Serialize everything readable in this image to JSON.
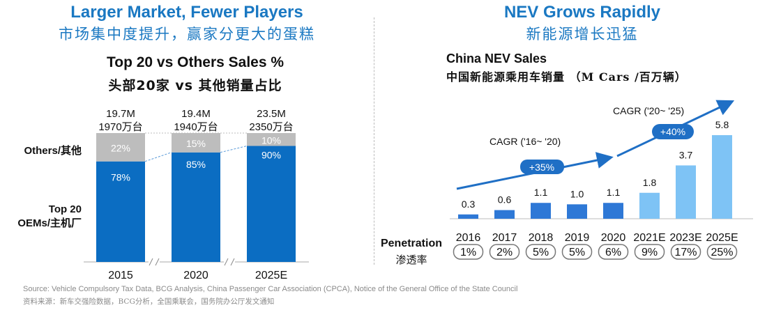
{
  "left_panel": {
    "title_en": "Larger Market, Fewer Players",
    "title_zh": "市场集中度提升，赢家分更大的蛋糕",
    "subtitle_en": "Top 20 vs Others Sales %",
    "subtitle_zh": "头部20家 vs 其他销量占比"
  },
  "right_panel": {
    "title_en": "NEV Grows Rapidly",
    "title_zh": "新能源增长迅猛",
    "subtitle_en": "China NEV Sales",
    "subtitle_zh": "中国新能源乘用车销量 （M Cars /百万辆）",
    "penetration_label_en": "Penetration",
    "penetration_label_zh": "渗透率"
  },
  "footer": {
    "source_en": "Source: Vehicle Compulsory Tax Data, BCG Analysis, China Passenger Car Association (CPCA), Notice of the General Office of the State Council",
    "source_zh": "资料来源：新车交强险数据，BCG分析，全国乘联会，国务院办公厅发文通知"
  },
  "colors": {
    "title_blue": "#1a78c2",
    "top20_blue": "#0b6dc2",
    "others_gray": "#bdbdbd",
    "nev_actual": "#2e78d6",
    "nev_forecast": "#7ec3f5",
    "arrow_blue": "#1f6fc5"
  },
  "chart_data": [
    {
      "type": "bar",
      "stacked": true,
      "percent": true,
      "title": "Top 20 vs Others Sales %",
      "categories": [
        "2015",
        "2020",
        "2025E"
      ],
      "totals_en": [
        "19.7M",
        "19.4M",
        "23.5M"
      ],
      "totals_zh": [
        "1970万台",
        "1940万台",
        "2350万台"
      ],
      "series": [
        {
          "name": "Top 20 OEMs/主机厂",
          "name_line1": "Top 20",
          "name_line2": "OEMs/主机厂",
          "values": [
            78,
            85,
            90
          ],
          "labels": [
            "78%",
            "85%",
            "90%"
          ]
        },
        {
          "name": "Others/其他",
          "values": [
            22,
            15,
            10
          ],
          "labels": [
            "22%",
            "15%",
            "10%"
          ]
        }
      ],
      "axis_breaks": true,
      "ylim": [
        0,
        100
      ]
    },
    {
      "type": "bar",
      "title": "China NEV Sales",
      "ylabel": "M Cars",
      "categories": [
        "2016",
        "2017",
        "2018",
        "2019",
        "2020",
        "2021E",
        "2023E",
        "2025E"
      ],
      "values": [
        0.3,
        0.6,
        1.1,
        1.0,
        1.1,
        1.8,
        3.7,
        5.8
      ],
      "value_labels": [
        "0.3",
        "0.6",
        "1.1",
        "1.0",
        "1.1",
        "1.8",
        "3.7",
        "5.8"
      ],
      "forecast": [
        false,
        false,
        false,
        false,
        false,
        true,
        true,
        true
      ],
      "penetration": [
        "1%",
        "2%",
        "5%",
        "5%",
        "6%",
        "9%",
        "17%",
        "25%"
      ],
      "annotations": [
        {
          "label": "CAGR ('16~ '20)",
          "badge": "+35%"
        },
        {
          "label": "CAGR ('20~ '25)",
          "badge": "+40%"
        }
      ],
      "ylim": [
        0,
        5.8
      ]
    }
  ]
}
